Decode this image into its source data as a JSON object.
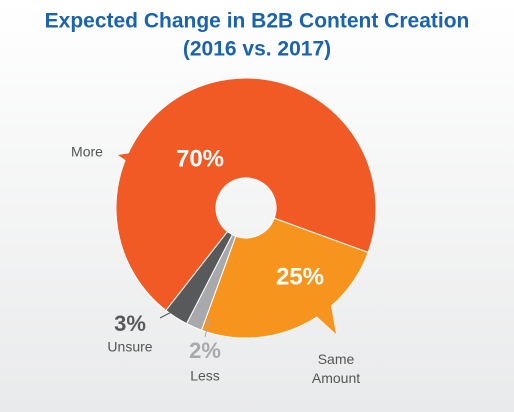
{
  "chart_data": {
    "type": "donut",
    "title": "Expected Change in B2B Content Creation",
    "subtitle": "(2016 vs. 2017)",
    "categories": [
      "More",
      "Same Amount",
      "Less",
      "Unsure"
    ],
    "values": [
      70,
      25,
      2,
      3
    ],
    "value_labels": [
      "70%",
      "25%",
      "2%",
      "3%"
    ],
    "colors": [
      "#f15a24",
      "#f7941d",
      "#a7a9ac",
      "#58595b"
    ]
  }
}
